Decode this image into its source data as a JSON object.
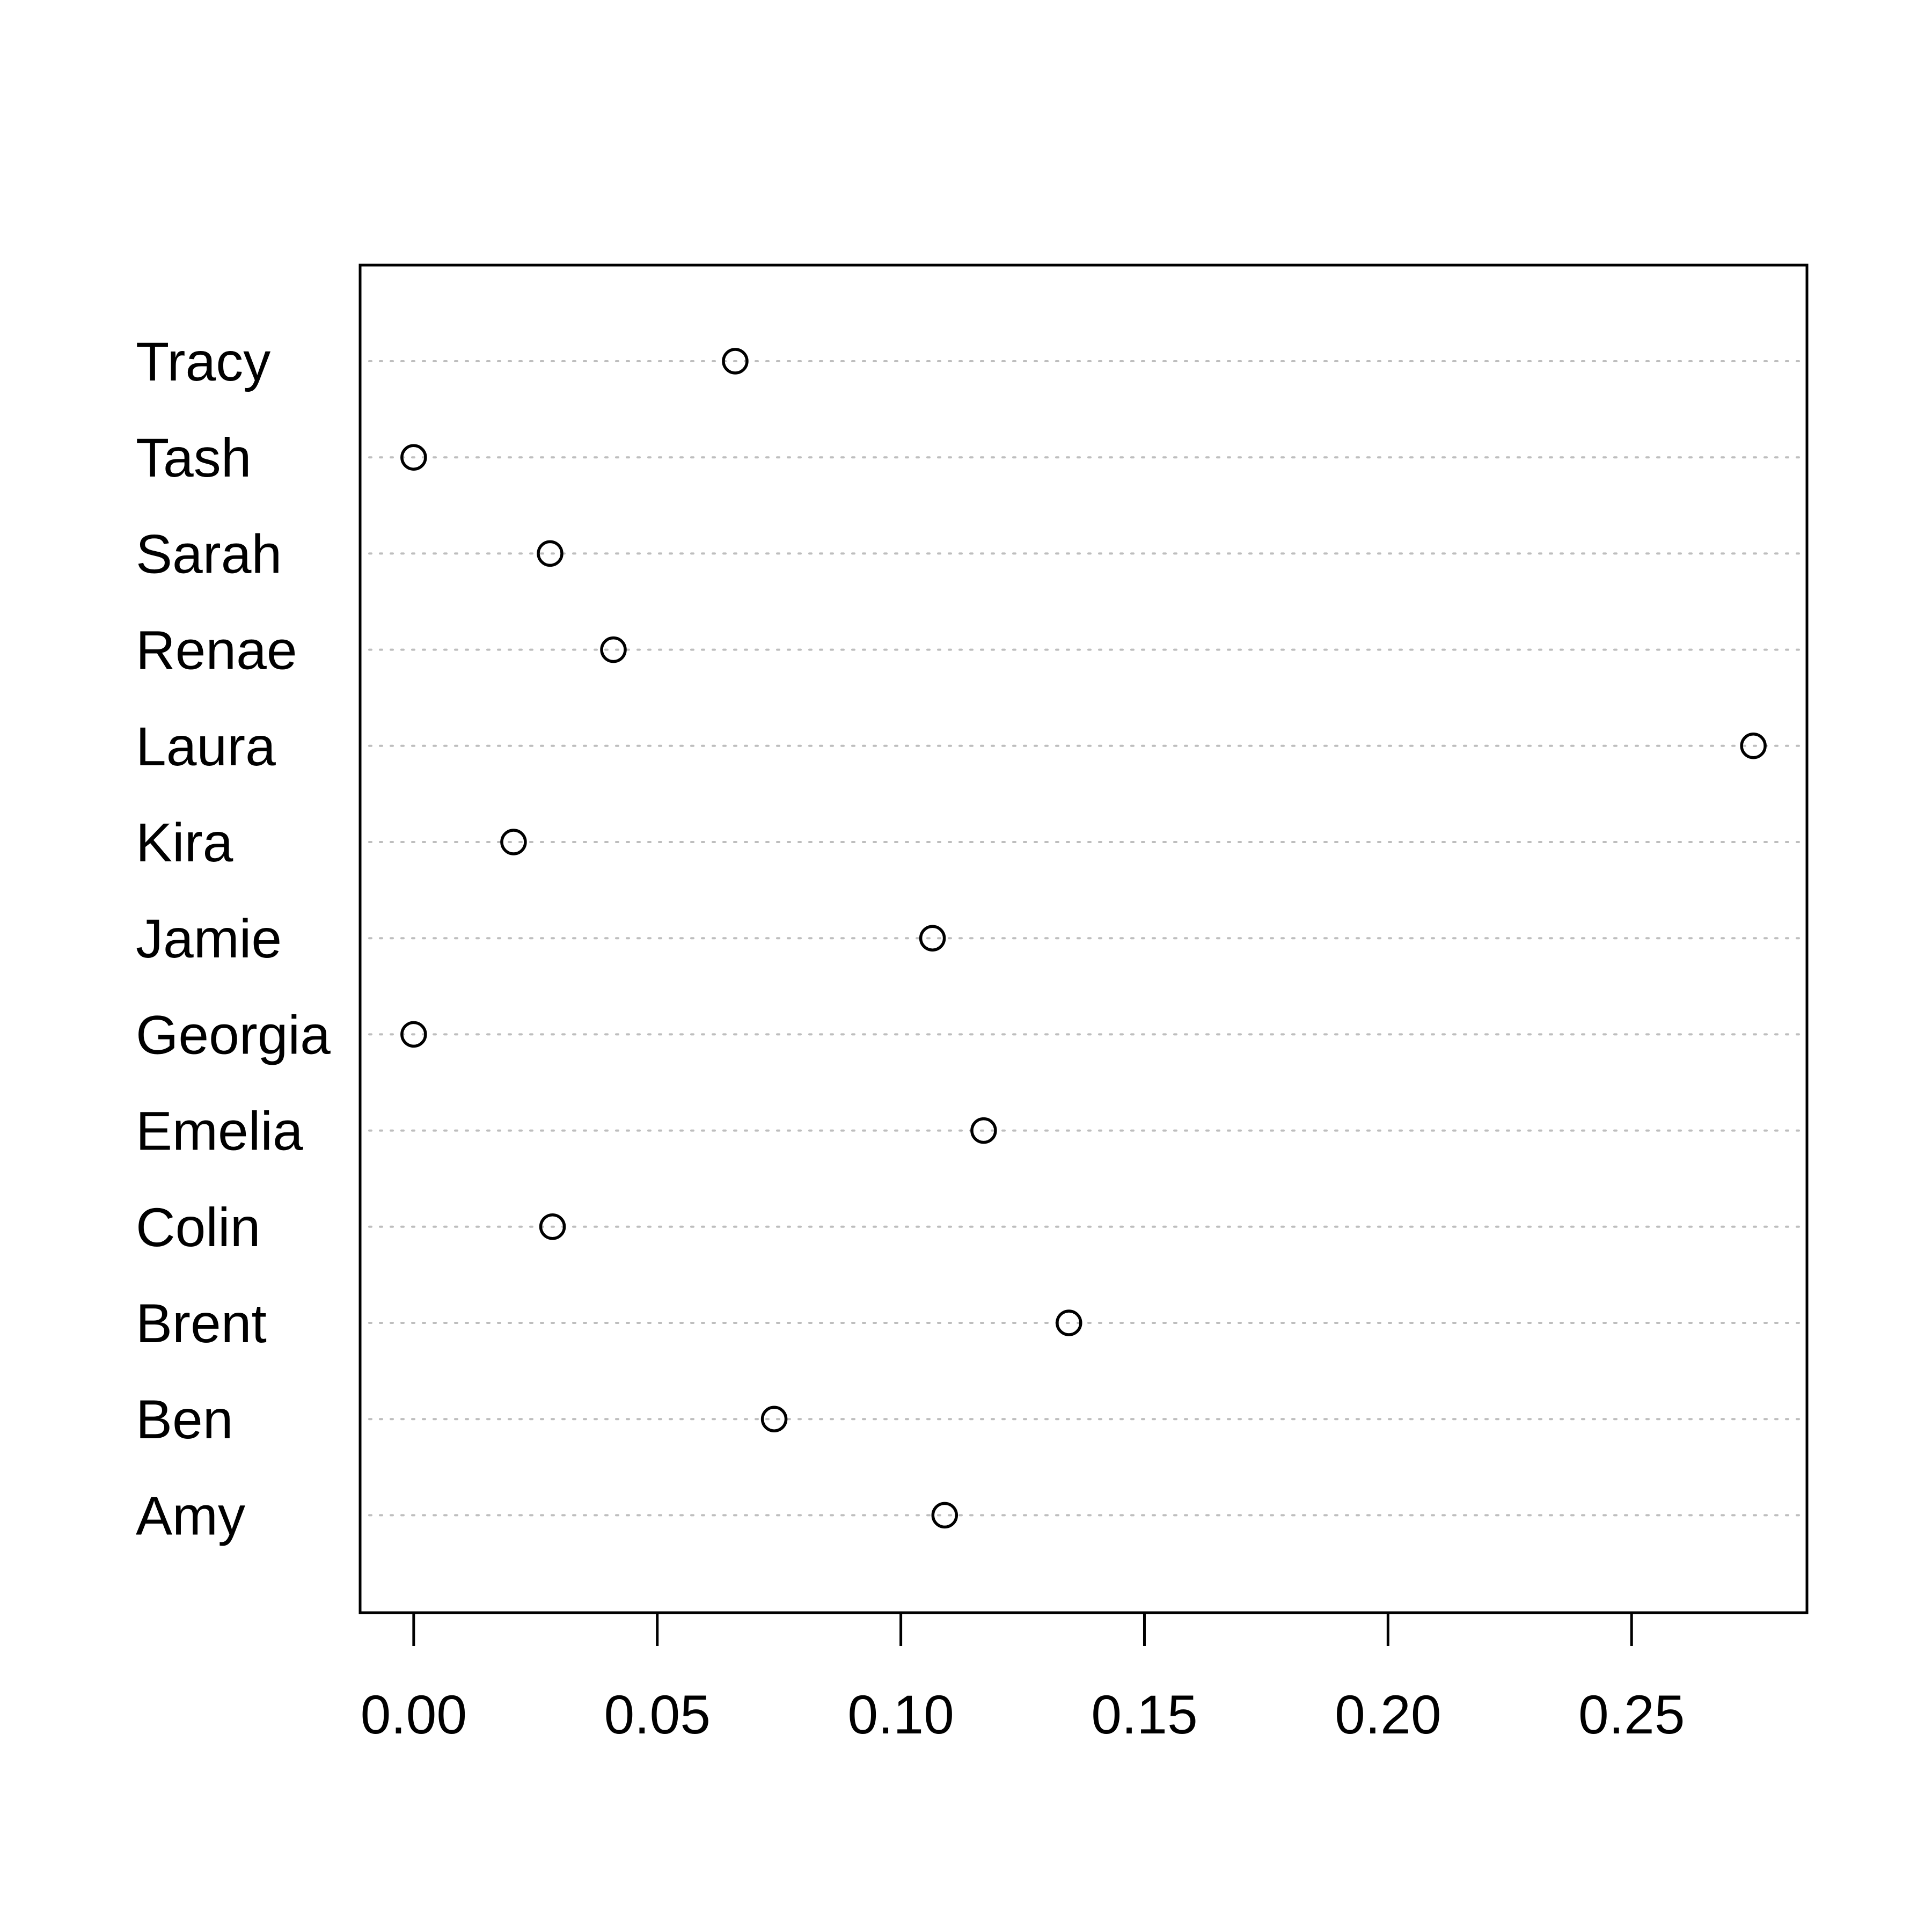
{
  "chart_data": {
    "type": "scatter",
    "title": "",
    "xlabel": "",
    "ylabel": "",
    "xlim": [
      -0.011,
      0.286
    ],
    "xticks": [
      "0.00",
      "0.05",
      "0.10",
      "0.15",
      "0.20",
      "0.25"
    ],
    "xtick_values": [
      0.0,
      0.05,
      0.1,
      0.15,
      0.2,
      0.25
    ],
    "grid": "dotted horizontal guide lines per category",
    "categories": [
      "Tracy",
      "Tash",
      "Sarah",
      "Renae",
      "Laura",
      "Kira",
      "Jamie",
      "Georgia",
      "Emelia",
      "Colin",
      "Brent",
      "Ben",
      "Amy"
    ],
    "values": [
      0.066,
      0.0,
      0.028,
      0.041,
      0.275,
      0.0205,
      0.1065,
      0.0,
      0.117,
      0.0285,
      0.1345,
      0.074,
      0.109
    ],
    "colors": {
      "axis": "#000000",
      "guide": "#bebebe",
      "marker": "#000000"
    }
  }
}
